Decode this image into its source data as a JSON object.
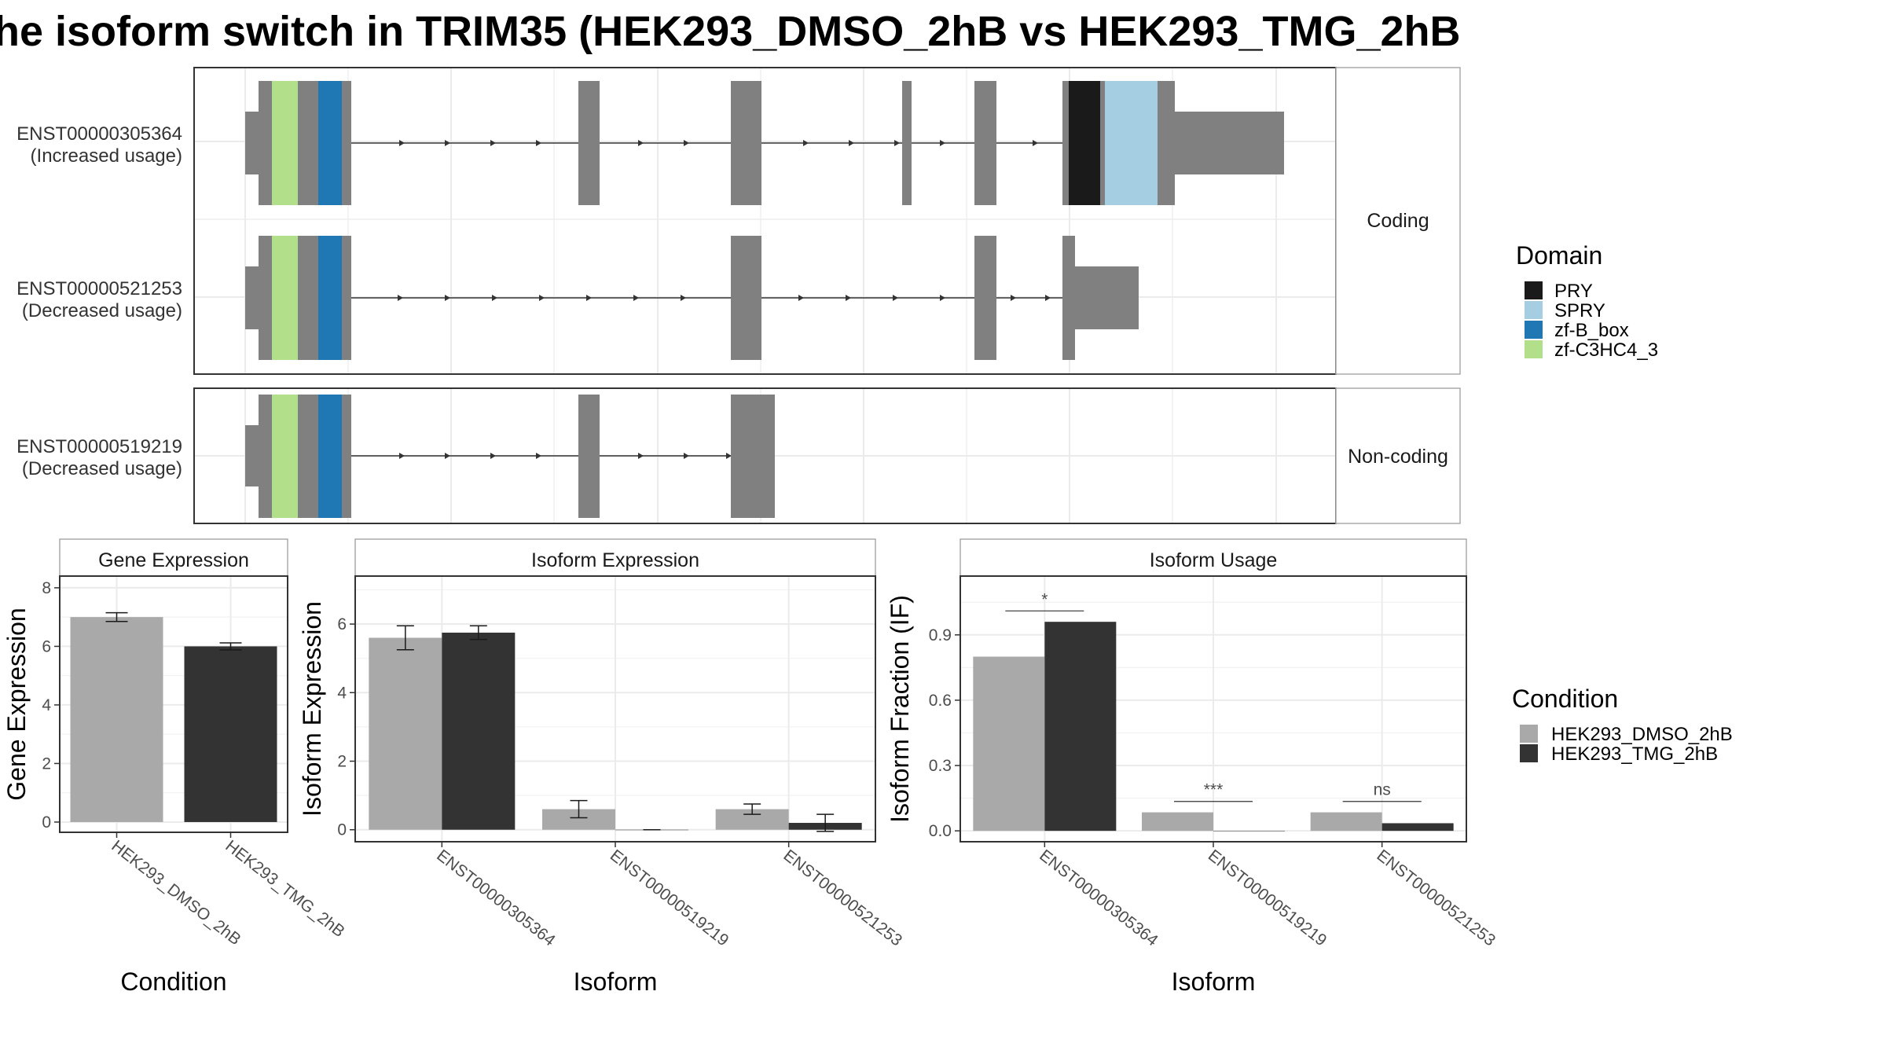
{
  "title": "he isoform switch in TRIM35 (HEK293_DMSO_2hB vs HEK293_TMG_2hB",
  "colors": {
    "exon": "#808080",
    "PRY": "#1a1a1a",
    "SPRY": "#a6cee3",
    "zf-B_box": "#1f78b4",
    "zf-C3HC4_3": "#b2df8a",
    "dmso": "#a9a9a9",
    "tmg": "#333333"
  },
  "structure": {
    "coding_label": "Coding",
    "noncoding_label": "Non-coding",
    "transcripts": [
      {
        "id": "ENST00000305364",
        "usage": "(Increased usage)"
      },
      {
        "id": "ENST00000521253",
        "usage": "(Decreased usage)"
      },
      {
        "id": "ENST00000519219",
        "usage": "(Decreased usage)"
      }
    ]
  },
  "domain_legend": {
    "title": "Domain",
    "items": [
      {
        "name": "PRY",
        "color": "#1a1a1a"
      },
      {
        "name": "SPRY",
        "color": "#a6cee3"
      },
      {
        "name": "zf-B_box",
        "color": "#1f78b4"
      },
      {
        "name": "zf-C3HC4_3",
        "color": "#b2df8a"
      }
    ]
  },
  "condition_legend": {
    "title": "Condition",
    "items": [
      {
        "name": "HEK293_DMSO_2hB",
        "color": "#a9a9a9"
      },
      {
        "name": "HEK293_TMG_2hB",
        "color": "#333333"
      }
    ]
  },
  "chart_data": [
    {
      "type": "bar",
      "title": "Gene Expression",
      "xlabel": "Condition",
      "ylabel": "Gene Expression",
      "categories": [
        "HEK293_DMSO_2hB",
        "HEK293_TMG_2hB"
      ],
      "values": [
        7.0,
        6.0
      ],
      "errors": [
        0.15,
        0.12
      ],
      "ylim": [
        -0.35,
        8.4
      ],
      "yticks": [
        0,
        2,
        4,
        6,
        8
      ]
    },
    {
      "type": "bar",
      "title": "Isoform Expression",
      "xlabel": "Isoform",
      "ylabel": "Isoform Expression",
      "categories": [
        "ENST00000305364",
        "ENST00000519219",
        "ENST00000521253"
      ],
      "series": [
        {
          "name": "HEK293_DMSO_2hB",
          "values": [
            5.6,
            0.6,
            0.6
          ],
          "errors": [
            0.35,
            0.25,
            0.15
          ]
        },
        {
          "name": "HEK293_TMG_2hB",
          "values": [
            5.75,
            0.0,
            0.2
          ],
          "errors": [
            0.2,
            0.0,
            0.25
          ]
        }
      ],
      "ylim": [
        -0.35,
        7.4
      ],
      "yticks": [
        0,
        2,
        4,
        6
      ]
    },
    {
      "type": "bar",
      "title": "Isoform Usage",
      "xlabel": "Isoform",
      "ylabel": "Isoform Fraction (IF)",
      "categories": [
        "ENST00000305364",
        "ENST00000519219",
        "ENST00000521253"
      ],
      "series": [
        {
          "name": "HEK293_DMSO_2hB",
          "values": [
            0.8,
            0.085,
            0.085
          ]
        },
        {
          "name": "HEK293_TMG_2hB",
          "values": [
            0.96,
            0.0,
            0.035
          ]
        }
      ],
      "ylim": [
        -0.05,
        1.17
      ],
      "yticks": [
        "0.0",
        "0.3",
        "0.6",
        "0.9"
      ],
      "significance": [
        {
          "label": "*",
          "y": 1.01
        },
        {
          "label": "***",
          "y": 0.135
        },
        {
          "label": "ns",
          "y": 0.135
        }
      ]
    }
  ]
}
